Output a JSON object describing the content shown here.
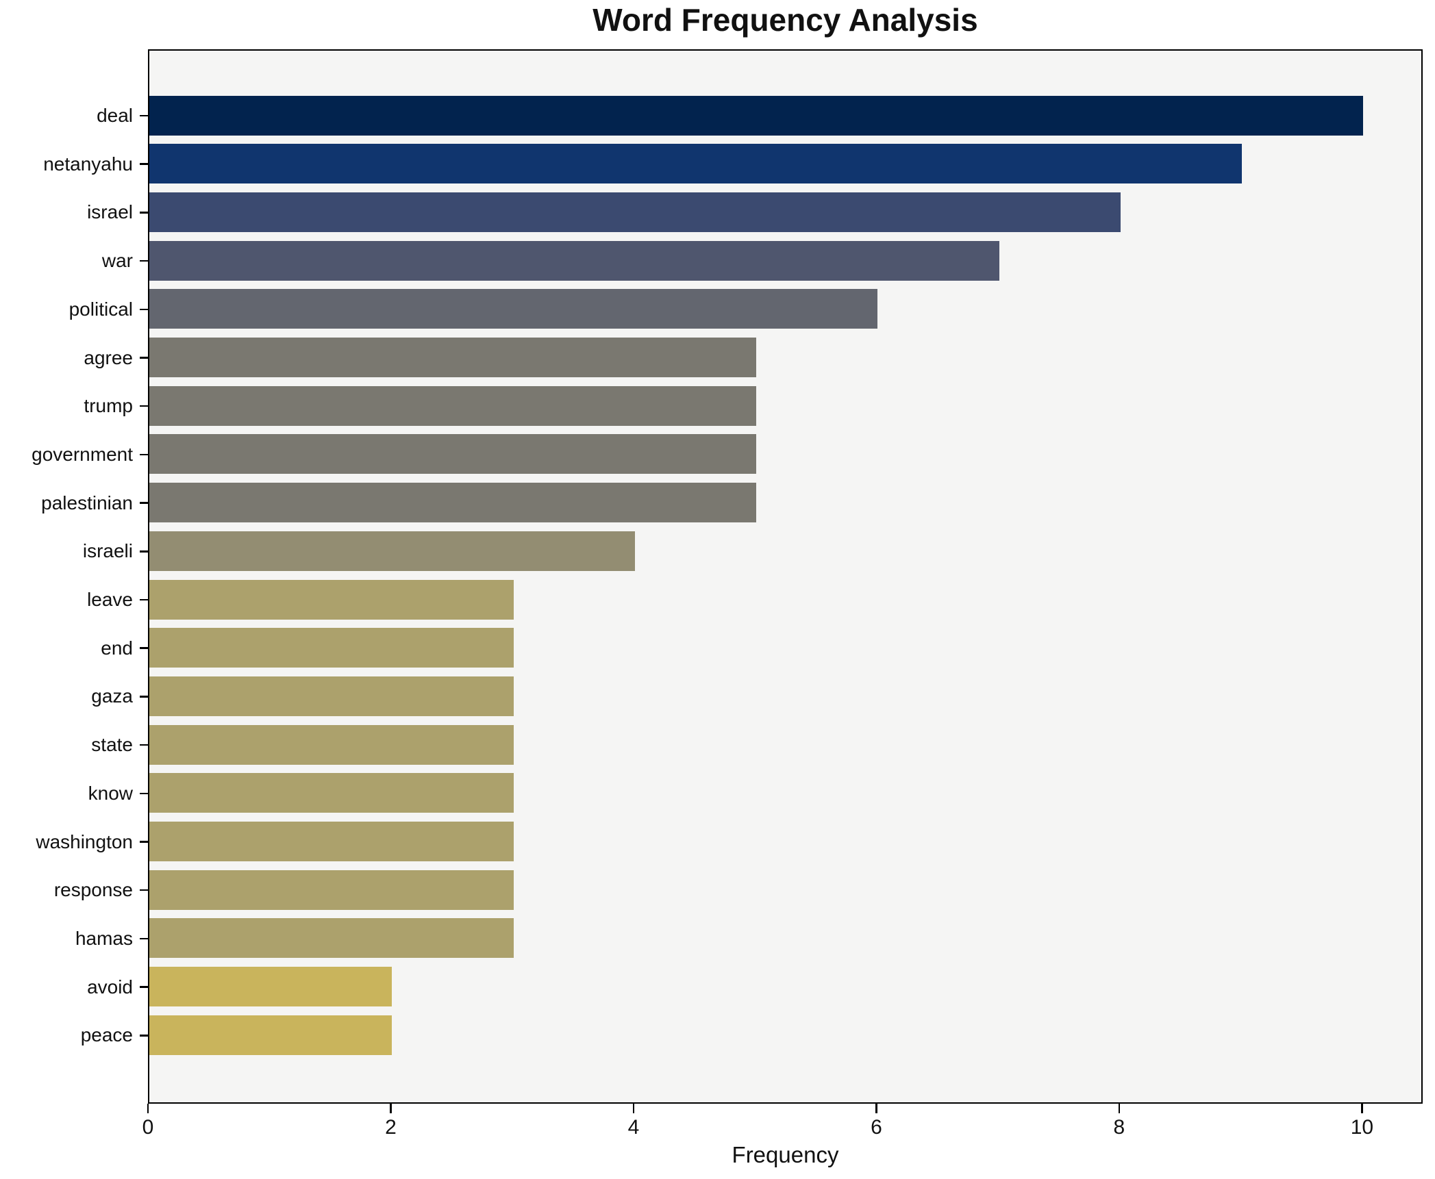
{
  "chart_data": {
    "type": "bar",
    "orientation": "horizontal",
    "title": "Word Frequency Analysis",
    "xlabel": "Frequency",
    "ylabel": "",
    "categories": [
      "deal",
      "netanyahu",
      "israel",
      "war",
      "political",
      "agree",
      "trump",
      "government",
      "palestinian",
      "israeli",
      "leave",
      "end",
      "gaza",
      "state",
      "know",
      "washington",
      "response",
      "hamas",
      "avoid",
      "peace"
    ],
    "values": [
      10,
      9,
      8,
      7,
      6,
      5,
      5,
      5,
      5,
      4,
      3,
      3,
      3,
      3,
      3,
      3,
      3,
      3,
      2,
      2
    ],
    "bar_colors": [
      "#02234e",
      "#10356e",
      "#3b4a70",
      "#4f566e",
      "#63666f",
      "#7a7870",
      "#7a7870",
      "#7a7870",
      "#7a7870",
      "#938d72",
      "#aca16c",
      "#aca16c",
      "#aca16c",
      "#aca16c",
      "#aca16c",
      "#aca16c",
      "#aca16c",
      "#aca16c",
      "#c9b45c",
      "#c9b45c"
    ],
    "xlim": [
      0,
      10.5
    ],
    "x_ticks": [
      0,
      2,
      4,
      6,
      8,
      10
    ],
    "grid": false,
    "legend_position": "none",
    "plot_background_color": "#f5f5f4",
    "spine_color": "#000000"
  }
}
